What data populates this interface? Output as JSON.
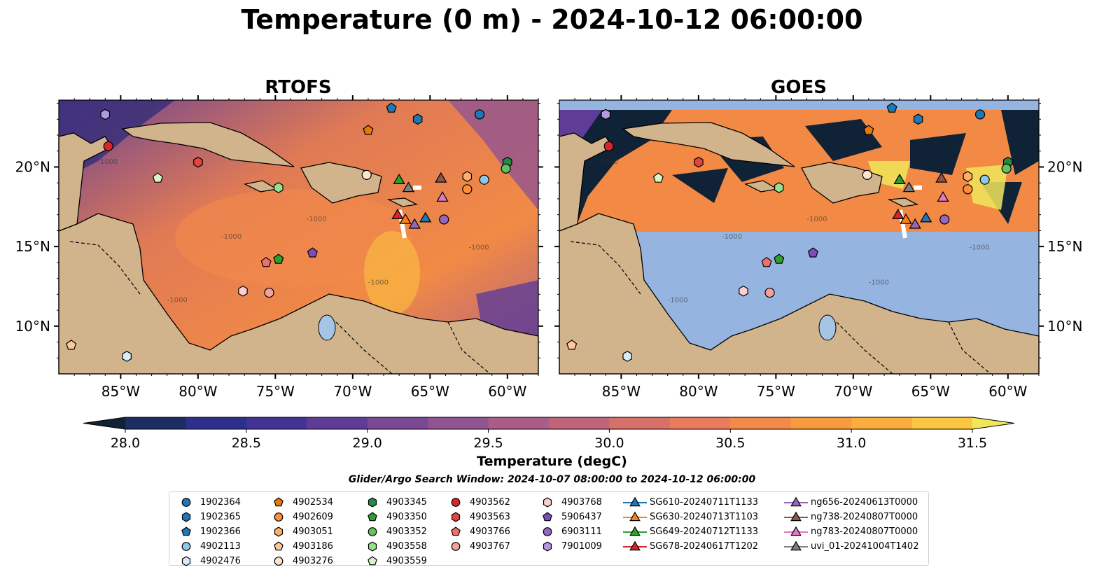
{
  "figure": {
    "title": "Temperature (0 m) - 2024-10-12 06:00:00",
    "window_note": "Glider/Argo Search Window: 2024-10-07 08:00:00 to 2024-10-12 06:00:00"
  },
  "panels": [
    {
      "title": "RTOFS",
      "source": "model"
    },
    {
      "title": "GOES",
      "source": "satellite",
      "coverage_lat": [
        16.0,
        23.6
      ]
    }
  ],
  "map": {
    "lon_range": [
      -89,
      -58
    ],
    "lat_range": [
      7,
      24.2
    ],
    "lon_ticks": [
      "85°W",
      "80°W",
      "75°W",
      "70°W",
      "65°W",
      "60°W"
    ],
    "lat_ticks": [
      "20°N",
      "15°N",
      "10°N"
    ],
    "land_color": "#d2b48c",
    "nodata_color": "#96b4e0",
    "rivers_color": "#9fb9d6",
    "bathymetry_contour_label": "-1000"
  },
  "colorbar": {
    "label": "Temperature (degC)",
    "min": 28.0,
    "max": 31.5,
    "tick_labels": [
      "28.0",
      "28.5",
      "29.0",
      "29.5",
      "30.0",
      "30.5",
      "31.0",
      "31.5"
    ],
    "colors": [
      "#0f2236",
      "#1d2d63",
      "#2c2f8c",
      "#433394",
      "#5f3d96",
      "#7a4993",
      "#925490",
      "#a95d88",
      "#c06579",
      "#d8706a",
      "#ea7b5d",
      "#f48a4a",
      "#f89b3e",
      "#fbae3c",
      "#fcc640",
      "#f1e65a"
    ],
    "extend": "both"
  },
  "markers": {
    "legend_columns": [
      [
        {
          "label": "1902364",
          "shape": "circle",
          "color": "#1f77b4"
        },
        {
          "label": "1902365",
          "shape": "hexagon",
          "color": "#1f77b4"
        },
        {
          "label": "1902366",
          "shape": "pentagon",
          "color": "#1f77b4"
        },
        {
          "label": "4902113",
          "shape": "circle",
          "color": "#8fc7ea"
        },
        {
          "label": "4902476",
          "shape": "hexagon",
          "color": "#d6ecfa"
        }
      ],
      [
        {
          "label": "4902534",
          "shape": "pentagon",
          "color": "#e8780c"
        },
        {
          "label": "4902609",
          "shape": "circle",
          "color": "#fb8f3c"
        },
        {
          "label": "4903051",
          "shape": "hexagon",
          "color": "#fdae6b"
        },
        {
          "label": "4903186",
          "shape": "pentagon",
          "color": "#fdc99a"
        },
        {
          "label": "4903276",
          "shape": "circle",
          "color": "#fee6ce"
        }
      ],
      [
        {
          "label": "4903345",
          "shape": "hexagon",
          "color": "#238b45"
        },
        {
          "label": "4903350",
          "shape": "pentagon",
          "color": "#2ca02c"
        },
        {
          "label": "4903352",
          "shape": "circle",
          "color": "#5ec45e"
        },
        {
          "label": "4903558",
          "shape": "hexagon",
          "color": "#98df8a"
        },
        {
          "label": "4903559",
          "shape": "pentagon",
          "color": "#d9f5c5"
        }
      ],
      [
        {
          "label": "4903562",
          "shape": "circle",
          "color": "#d62728"
        },
        {
          "label": "4903563",
          "shape": "hexagon",
          "color": "#e0453f"
        },
        {
          "label": "4903766",
          "shape": "pentagon",
          "color": "#ef6f6c"
        },
        {
          "label": "4903767",
          "shape": "circle",
          "color": "#f5a09a"
        }
      ],
      [
        {
          "label": "4903768",
          "shape": "hexagon",
          "color": "#fcd0d0"
        },
        {
          "label": "5906437",
          "shape": "pentagon",
          "color": "#7b4fb4"
        },
        {
          "label": "6903111",
          "shape": "circle",
          "color": "#9467bd"
        },
        {
          "label": "7901009",
          "shape": "hexagon",
          "color": "#b39ae0"
        }
      ],
      [
        {
          "label": "SG610-20240711T1133",
          "shape": "triangle",
          "color": "#1f77b4",
          "line": true
        },
        {
          "label": "SG630-20240713T1103",
          "shape": "triangle",
          "color": "#ff7f0e",
          "line": true
        },
        {
          "label": "SG649-20240712T1133",
          "shape": "triangle",
          "color": "#2ca02c",
          "line": true
        },
        {
          "label": "SG678-20240617T1202",
          "shape": "triangle",
          "color": "#d62728",
          "line": true
        }
      ],
      [
        {
          "label": "ng656-20240613T0000",
          "shape": "triangle",
          "color": "#9467bd",
          "line": true
        },
        {
          "label": "ng738-20240807T0000",
          "shape": "triangle",
          "color": "#8c564b",
          "line": true
        },
        {
          "label": "ng783-20240807T0000",
          "shape": "triangle",
          "color": "#e377c2",
          "line": true
        },
        {
          "label": "uvi_01-20241004T1402",
          "shape": "triangle",
          "color": "#7f7f7f",
          "line": true
        }
      ]
    ],
    "positions": [
      {
        "label": "1902364",
        "lon": -61.8,
        "lat": 23.3
      },
      {
        "label": "1902365",
        "lon": -65.8,
        "lat": 23.0
      },
      {
        "label": "1902366",
        "lon": -67.5,
        "lat": 23.7
      },
      {
        "label": "4902113",
        "lon": -61.5,
        "lat": 19.2
      },
      {
        "label": "4902476",
        "lon": -84.6,
        "lat": 8.1
      },
      {
        "label": "4902534",
        "lon": -69.0,
        "lat": 22.3
      },
      {
        "label": "4902609",
        "lon": -62.6,
        "lat": 18.6
      },
      {
        "label": "4903051",
        "lon": -62.6,
        "lat": 19.4
      },
      {
        "label": "4903186",
        "lon": -88.2,
        "lat": 8.8
      },
      {
        "label": "4903276",
        "lon": -69.1,
        "lat": 19.5
      },
      {
        "label": "4903345",
        "lon": -60.0,
        "lat": 20.3
      },
      {
        "label": "4903350",
        "lon": -74.8,
        "lat": 14.2
      },
      {
        "label": "4903352",
        "lon": -60.1,
        "lat": 19.9
      },
      {
        "label": "4903558",
        "lon": -74.8,
        "lat": 18.7
      },
      {
        "label": "4903559",
        "lon": -82.6,
        "lat": 19.3
      },
      {
        "label": "4903562",
        "lon": -85.8,
        "lat": 21.3
      },
      {
        "label": "4903563",
        "lon": -80.0,
        "lat": 20.3
      },
      {
        "label": "4903766",
        "lon": -75.6,
        "lat": 14.0
      },
      {
        "label": "4903767",
        "lon": -75.4,
        "lat": 12.1
      },
      {
        "label": "4903768",
        "lon": -77.1,
        "lat": 12.2
      },
      {
        "label": "5906437",
        "lon": -72.6,
        "lat": 14.6
      },
      {
        "label": "6903111",
        "lon": -64.1,
        "lat": 16.7
      },
      {
        "label": "7901009",
        "lon": -86.0,
        "lat": 23.3
      },
      {
        "label": "SG610-20240711T1133",
        "lon": -65.3,
        "lat": 16.8
      },
      {
        "label": "SG630-20240713T1103",
        "lon": -66.6,
        "lat": 16.7
      },
      {
        "label": "SG649-20240712T1133",
        "lon": -67.0,
        "lat": 19.2
      },
      {
        "label": "SG678-20240617T1202",
        "lon": -67.1,
        "lat": 17.0
      },
      {
        "label": "ng656-20240613T0000",
        "lon": -66.0,
        "lat": 16.4
      },
      {
        "label": "ng738-20240807T0000",
        "lon": -64.3,
        "lat": 19.3
      },
      {
        "label": "ng783-20240807T0000",
        "lon": -64.2,
        "lat": 18.1
      },
      {
        "label": "uvi_01-20241004T1402",
        "lon": -66.4,
        "lat": 18.7
      }
    ]
  }
}
